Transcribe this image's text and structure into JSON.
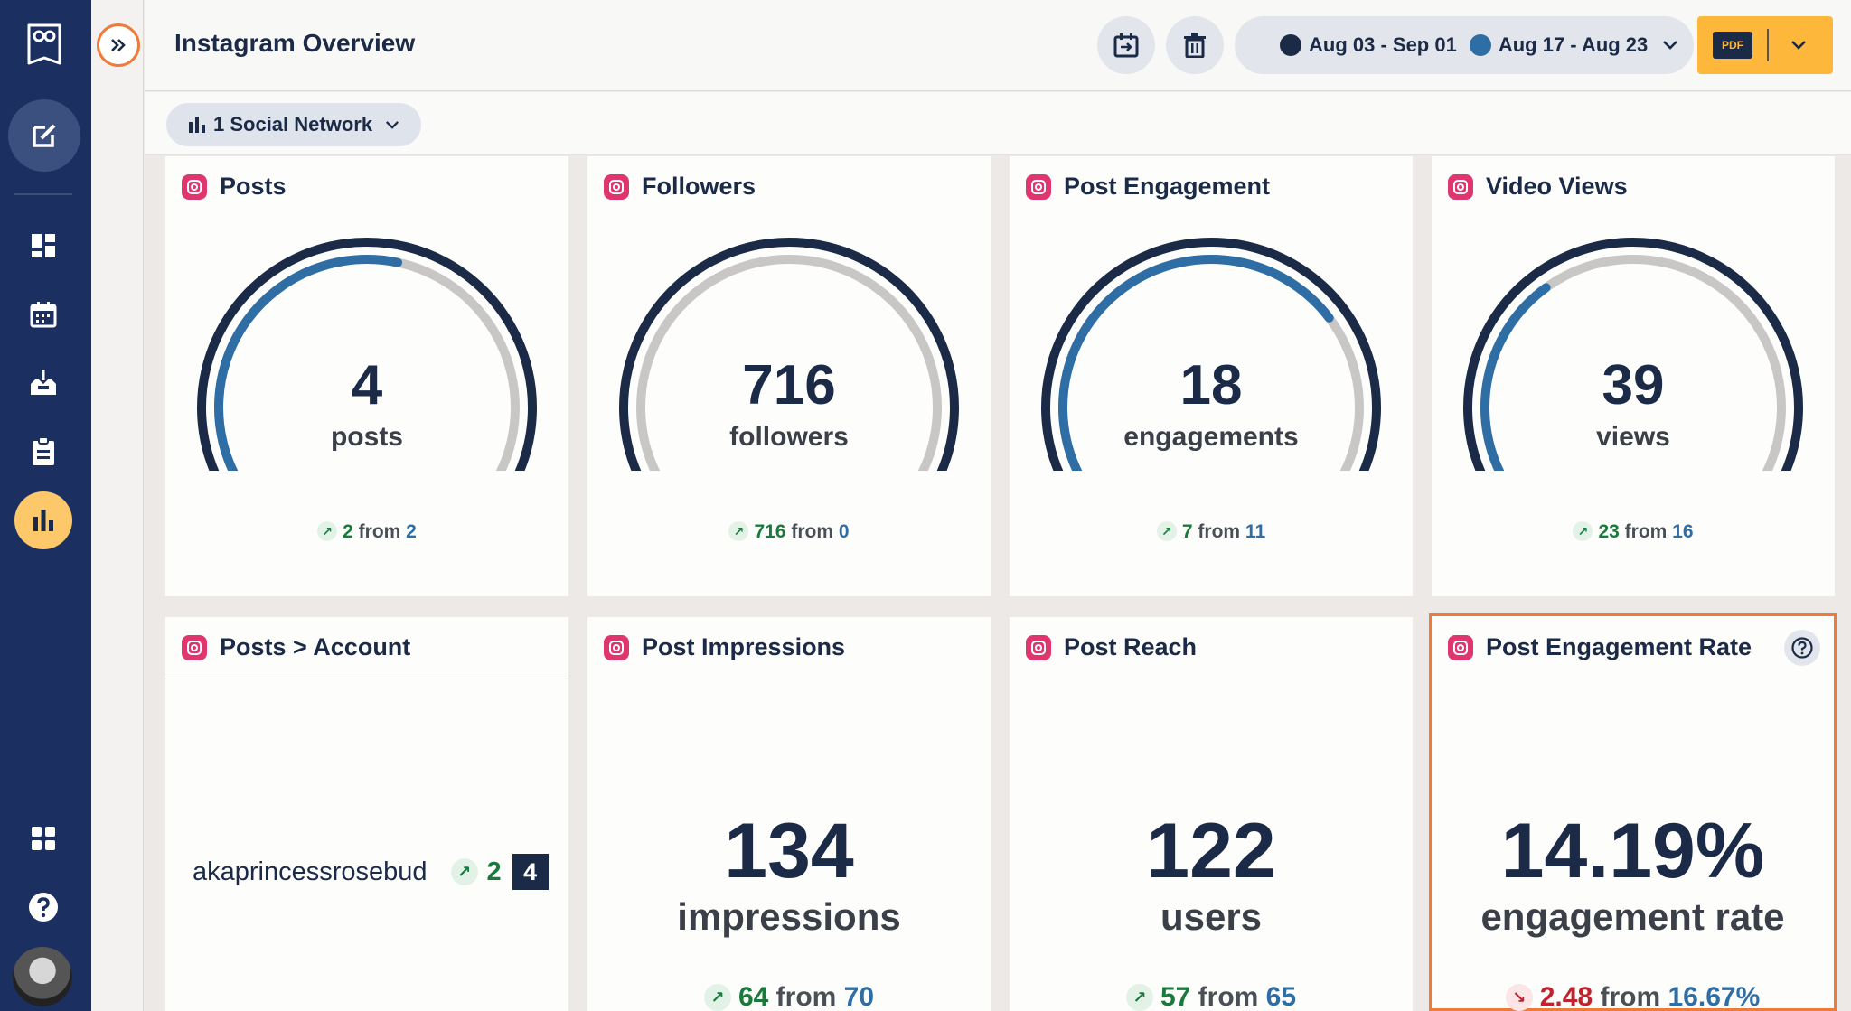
{
  "header": {
    "title": "Instagram Overview",
    "date_primary": "Aug 03 - Sep 01",
    "date_compare": "Aug 17 - Aug 23",
    "pdf_label": "PDF"
  },
  "filter": {
    "network_label": "1 Social Network"
  },
  "colors": {
    "navy": "#1b2a47",
    "accent_blue": "#2f6ea5",
    "gauge_track": "#c9c7c6",
    "rail": "#1b3060",
    "active_nav": "#fdc86a",
    "pdf_button": "#fdb73b",
    "highlight": "#ef7b3b"
  },
  "gauge_cards": [
    {
      "title": "Posts",
      "value": "4",
      "unit": "posts",
      "delta": "2",
      "from_word": "from",
      "previous": "2",
      "fill": 0.55
    },
    {
      "title": "Followers",
      "value": "716",
      "unit": "followers",
      "delta": "716",
      "from_word": "from",
      "previous": "0",
      "fill": 0.0
    },
    {
      "title": "Post Engagement",
      "value": "18",
      "unit": "engagements",
      "delta": "7",
      "from_word": "from",
      "previous": "11",
      "fill": 0.72
    },
    {
      "title": "Video Views",
      "value": "39",
      "unit": "views",
      "delta": "23",
      "from_word": "from",
      "previous": "16",
      "fill": 0.35
    }
  ],
  "account_card": {
    "title": "Posts > Account",
    "account": "akaprincessrosebud",
    "delta": "2",
    "count": "4"
  },
  "stat_cards": [
    {
      "title": "Post Impressions",
      "value": "134",
      "unit": "impressions",
      "delta": "64",
      "from_word": "from",
      "previous": "70",
      "direction": "up"
    },
    {
      "title": "Post Reach",
      "value": "122",
      "unit": "users",
      "delta": "57",
      "from_word": "from",
      "previous": "65",
      "direction": "up"
    },
    {
      "title": "Post Engagement Rate",
      "value": "14.19%",
      "unit": "engagement rate",
      "delta": "2.48",
      "from_word": "from",
      "previous": "16.67%",
      "direction": "down"
    }
  ]
}
